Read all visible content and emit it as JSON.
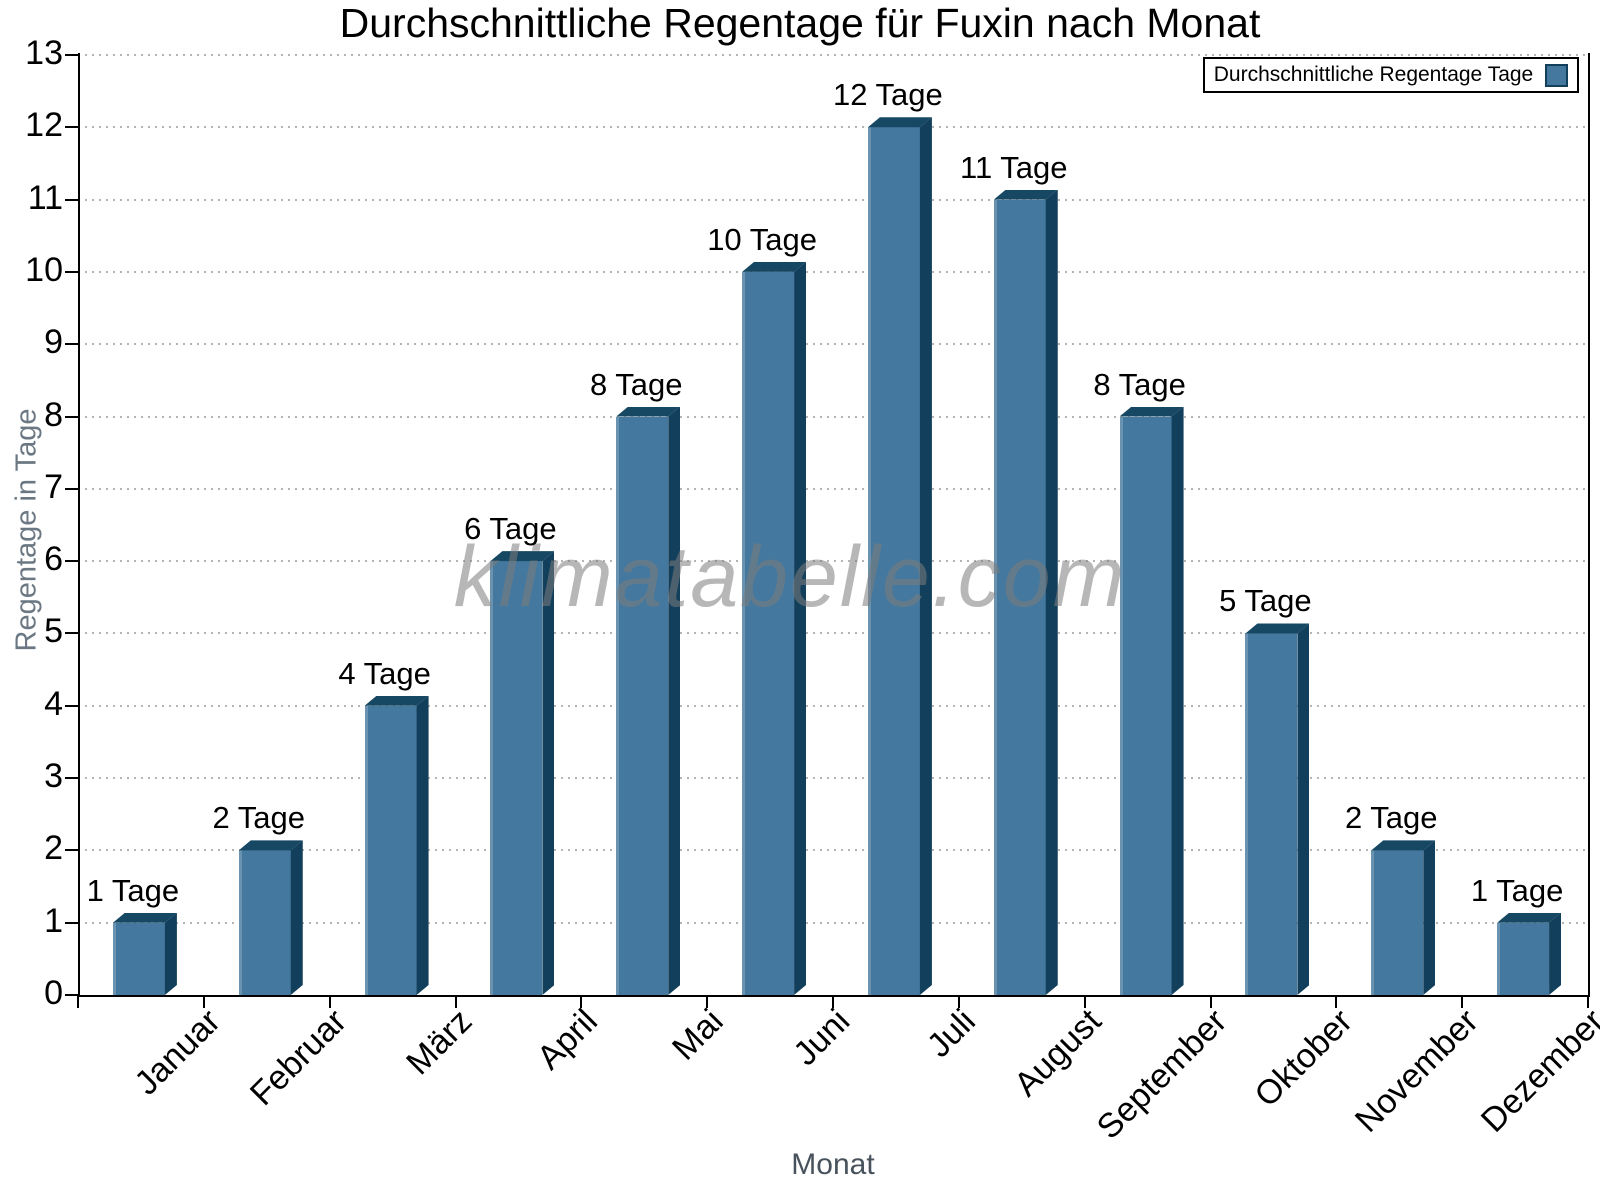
{
  "chart_data": {
    "type": "bar",
    "title": "Durchschnittliche Regentage für Fuxin nach Monat",
    "xlabel": "Monat",
    "ylabel": "Regentage in Tage",
    "categories": [
      "Januar",
      "Februar",
      "März",
      "April",
      "Mai",
      "Juni",
      "Juli",
      "August",
      "September",
      "Oktober",
      "November",
      "Dezember"
    ],
    "values": [
      1,
      2,
      4,
      6,
      8,
      10,
      12,
      11,
      8,
      5,
      2,
      1
    ],
    "bar_labels": [
      "1 Tage",
      "2 Tage",
      "4 Tage",
      "6 Tage",
      "8 Tage",
      "10 Tage",
      "12 Tage",
      "11 Tage",
      "8 Tage",
      "5 Tage",
      "2 Tage",
      "1 Tage"
    ],
    "legend_entries": [
      "Durchschnittliche Regentage Tage"
    ],
    "legend_position": "top-right",
    "watermark": "klimatabelle.com",
    "ylim": [
      0,
      13
    ],
    "ytick_step": 1,
    "grid": "horizontal-dotted",
    "colors": {
      "bar_face": "#45789e",
      "bar_top": "#164863",
      "bar_side": "#123f5b",
      "grid": "#b4b4b4",
      "axis": "#000000",
      "axis_title": "#6b7883",
      "watermark": "#7d7d7d"
    }
  }
}
